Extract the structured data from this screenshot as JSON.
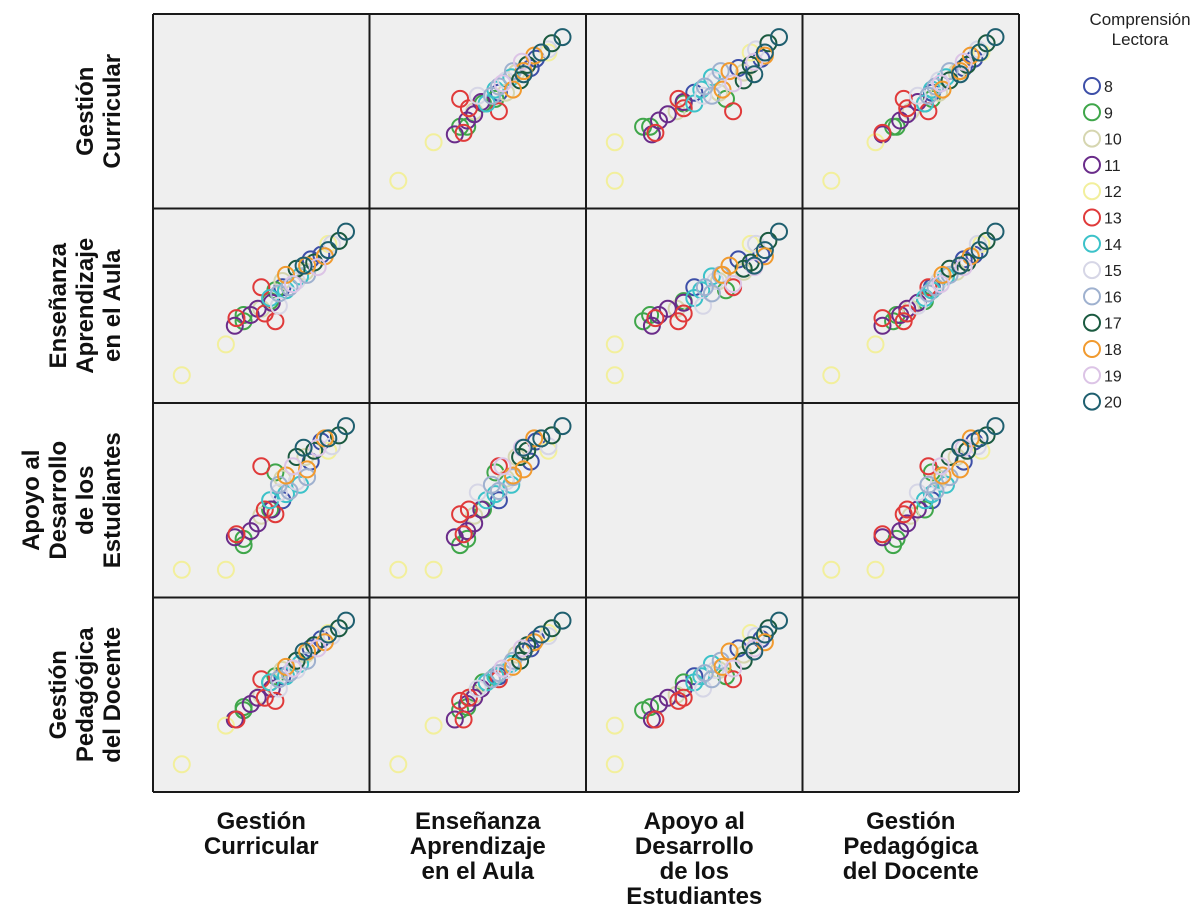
{
  "chart_data": {
    "type": "scatter",
    "variables": [
      "Gestión Curricular",
      "Enseñanza Aprendizaje en el Aula",
      "Apoyo al Desarrollo de los Estudiantes",
      "Gestión Pedagógica del Docente"
    ],
    "column_labels": [
      [
        "Gestión",
        "Curricular"
      ],
      [
        "Enseñanza",
        "Aprendizaje",
        "en el Aula"
      ],
      [
        "Apoyo al",
        "Desarrollo",
        "de los",
        "Estudiantes"
      ],
      [
        "Gestión",
        "Pedagógica",
        "del Docente"
      ]
    ],
    "row_labels": [
      [
        "Gestión",
        "Curricular"
      ],
      [
        "Enseñanza",
        "Aprendizaje",
        "en el Aula"
      ],
      [
        "Apoyo al",
        "Desarrollo",
        "de los",
        "Estudiantes"
      ],
      [
        "Gestión",
        "Pedagógica",
        "del Docente"
      ]
    ],
    "range": [
      0,
      1
    ],
    "grid": false,
    "legend": {
      "title": [
        "Comprensión",
        "Lectora"
      ],
      "placement": "right",
      "entries": [
        {
          "label": "8",
          "color": "#3d4fa8"
        },
        {
          "label": "9",
          "color": "#3fa64a"
        },
        {
          "label": "10",
          "color": "#d6d6b0"
        },
        {
          "label": "11",
          "color": "#6a2c8a"
        },
        {
          "label": "12",
          "color": "#f2ef9c"
        },
        {
          "label": "13",
          "color": "#e03a3a"
        },
        {
          "label": "14",
          "color": "#3cc2c9"
        },
        {
          "label": "15",
          "color": "#d6d6e6"
        },
        {
          "label": "16",
          "color": "#9fb1cf"
        },
        {
          "label": "17",
          "color": "#1b5a40"
        },
        {
          "label": "18",
          "color": "#f19a2e"
        },
        {
          "label": "19",
          "color": "#dcc4e6"
        },
        {
          "label": "20",
          "color": "#1f5f6f"
        }
      ]
    },
    "series": [
      {
        "name": "8",
        "values": [
          [
            0.62,
            0.62,
            0.5,
            0.62
          ],
          [
            0.84,
            0.83,
            0.88,
            0.86
          ],
          [
            0.78,
            0.8,
            0.75,
            0.8
          ]
        ]
      },
      {
        "name": "9",
        "values": [
          [
            0.4,
            0.4,
            0.21,
            0.4
          ],
          [
            0.55,
            0.53,
            0.44,
            0.58
          ],
          [
            0.4,
            0.44,
            0.25,
            0.42
          ],
          [
            0.58,
            0.6,
            0.68,
            0.62
          ]
        ]
      },
      {
        "name": "10",
        "values": [
          [
            0.75,
            0.72,
            0.78,
            0.76
          ],
          [
            0.62,
            0.66,
            0.64,
            0.66
          ],
          [
            0.5,
            0.48,
            0.4,
            0.5
          ]
        ]
      },
      {
        "name": "11",
        "values": [
          [
            0.35,
            0.37,
            0.26,
            0.34
          ],
          [
            0.48,
            0.48,
            0.35,
            0.48
          ],
          [
            0.56,
            0.52,
            0.44,
            0.54
          ],
          [
            0.44,
            0.44,
            0.3,
            0.44
          ]
        ]
      },
      {
        "name": "12",
        "values": [
          [
            0.05,
            0.05,
            0.05,
            0.05
          ],
          [
            0.88,
            0.9,
            0.82,
            0.9
          ],
          [
            0.3,
            0.25,
            0.05,
            0.3
          ]
        ]
      },
      {
        "name": "13",
        "values": [
          [
            0.58,
            0.4,
            0.41,
            0.46
          ],
          [
            0.5,
            0.62,
            0.72,
            0.6
          ],
          [
            0.52,
            0.45,
            0.44,
            0.48
          ],
          [
            0.36,
            0.42,
            0.28,
            0.34
          ]
        ]
      },
      {
        "name": "14",
        "values": [
          [
            0.64,
            0.6,
            0.54,
            0.62
          ],
          [
            0.72,
            0.69,
            0.6,
            0.7
          ],
          [
            0.55,
            0.55,
            0.5,
            0.58
          ]
        ]
      },
      {
        "name": "15",
        "values": [
          [
            0.9,
            0.9,
            0.85,
            0.88
          ],
          [
            0.7,
            0.66,
            0.62,
            0.66
          ],
          [
            0.6,
            0.5,
            0.55,
            0.54
          ]
        ]
      },
      {
        "name": "16",
        "values": [
          [
            0.76,
            0.7,
            0.65,
            0.72
          ],
          [
            0.6,
            0.58,
            0.6,
            0.6
          ],
          [
            0.66,
            0.62,
            0.56,
            0.64
          ]
        ]
      },
      {
        "name": "17",
        "values": [
          [
            0.94,
            0.92,
            0.92,
            0.93
          ],
          [
            0.8,
            0.78,
            0.82,
            0.82
          ],
          [
            0.7,
            0.74,
            0.78,
            0.72
          ]
        ]
      },
      {
        "name": "18",
        "values": [
          [
            0.86,
            0.82,
            0.9,
            0.84
          ],
          [
            0.76,
            0.76,
            0.7,
            0.78
          ],
          [
            0.64,
            0.7,
            0.66,
            0.68
          ]
        ]
      },
      {
        "name": "19",
        "values": [
          [
            0.82,
            0.75,
            0.84,
            0.8
          ],
          [
            0.68,
            0.64,
            0.72,
            0.67
          ]
        ]
      },
      {
        "name": "20",
        "values": [
          [
            0.98,
            0.98,
            0.98,
            0.98
          ],
          [
            0.88,
            0.86,
            0.9,
            0.89
          ],
          [
            0.74,
            0.76,
            0.84,
            0.78
          ]
        ]
      }
    ]
  }
}
